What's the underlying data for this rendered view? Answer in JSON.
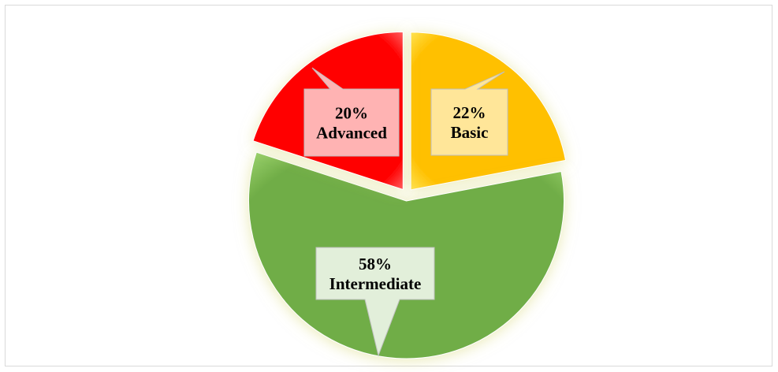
{
  "chart_data": {
    "type": "pie",
    "title": "",
    "legend": "none",
    "categories": [
      "Basic",
      "Intermediate",
      "Advanced"
    ],
    "values": [
      22,
      58,
      20
    ],
    "labels": [
      {
        "percent": "22%",
        "name": "Basic"
      },
      {
        "percent": "58%",
        "name": "Intermediate"
      },
      {
        "percent": "20%",
        "name": "Advanced"
      }
    ],
    "colors": {
      "Basic": "#FFC000",
      "Intermediate": "#70AD47",
      "Advanced": "#FF0000"
    },
    "label_box_colors": {
      "Basic": "#FFE699",
      "Intermediate": "#E2EFDA",
      "Advanced": "#FFB3B3"
    },
    "exploded": true
  }
}
